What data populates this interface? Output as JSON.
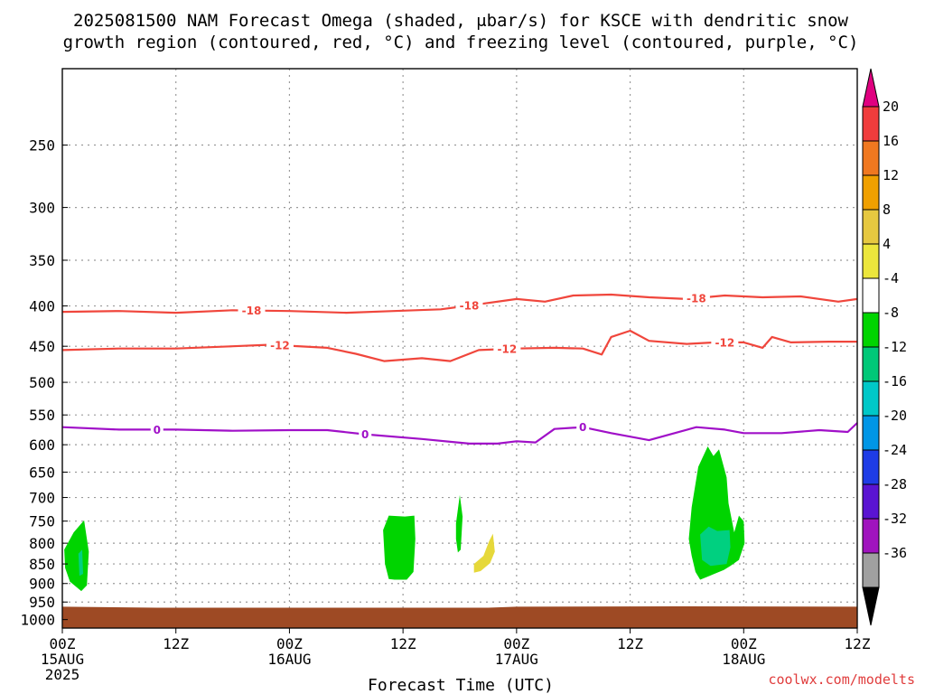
{
  "title_line1": "2025081500 NAM Forecast Omega (shaded, μbar/s) for KSCE with dendritic snow",
  "title_line2": "growth region (contoured, red, °C) and freezing level (contoured, purple, °C)",
  "xlabel": "Forecast Time (UTC)",
  "credit": "coolwx.com/modelts",
  "colors": {
    "dendritic": "#f0463c",
    "freezing": "#a010c8",
    "ground": "#9e4a24",
    "omega_weak_up": "#00d400",
    "omega_mod_up": "#00d080",
    "omega_down": "#e6d83a",
    "grid": "#9a9a9a"
  },
  "colorbar": {
    "labels": [
      "20",
      "16",
      "12",
      "8",
      "4",
      "-4",
      "-8",
      "-12",
      "-16",
      "-20",
      "-24",
      "-28",
      "-32",
      "-36"
    ],
    "colors": [
      "#f03c3c",
      "#f07820",
      "#f0a000",
      "#e6c840",
      "#ece63c",
      "#ffffff",
      "#00d400",
      "#00c878",
      "#00c8c8",
      "#0096e6",
      "#1e3ce6",
      "#5a14d2",
      "#a014be",
      "#a0a0a0"
    ],
    "top_arrow_color": "#e00080",
    "bottom_arrow_color": "#000000"
  },
  "chart_data": {
    "type": "time-height contour",
    "xlabel": "Forecast Time (UTC)",
    "x_ticks": [
      {
        "hour": 0,
        "line1": "00Z",
        "line2": "15AUG",
        "line3": "2025"
      },
      {
        "hour": 12,
        "line1": "12Z",
        "line2": "",
        "line3": ""
      },
      {
        "hour": 24,
        "line1": "00Z",
        "line2": "16AUG",
        "line3": ""
      },
      {
        "hour": 36,
        "line1": "12Z",
        "line2": "",
        "line3": ""
      },
      {
        "hour": 48,
        "line1": "00Z",
        "line2": "17AUG",
        "line3": ""
      },
      {
        "hour": 60,
        "line1": "12Z",
        "line2": "",
        "line3": ""
      },
      {
        "hour": 72,
        "line1": "00Z",
        "line2": "18AUG",
        "line3": ""
      },
      {
        "hour": 84,
        "line1": "12Z",
        "line2": "",
        "line3": ""
      }
    ],
    "xlim": [
      0,
      84
    ],
    "y_ticks": [
      250,
      300,
      350,
      400,
      450,
      500,
      550,
      600,
      650,
      700,
      750,
      800,
      850,
      900,
      950,
      1000
    ],
    "ylim_hPa": [
      200,
      1025
    ],
    "y_scale": "log (pressure)",
    "grid": true,
    "contours": [
      {
        "name": "-18",
        "color": "#f0463c",
        "labels": [
          {
            "hour": 20,
            "text": "-18"
          },
          {
            "hour": 43,
            "text": "-18"
          },
          {
            "hour": 67,
            "text": "-18"
          }
        ],
        "points": [
          [
            0,
            407
          ],
          [
            6,
            406
          ],
          [
            12,
            408
          ],
          [
            18,
            405
          ],
          [
            24,
            406
          ],
          [
            30,
            408
          ],
          [
            35,
            406
          ],
          [
            40,
            404
          ],
          [
            44,
            398
          ],
          [
            48,
            392
          ],
          [
            51,
            395
          ],
          [
            54,
            388
          ],
          [
            58,
            387
          ],
          [
            62,
            390
          ],
          [
            66,
            392
          ],
          [
            70,
            388
          ],
          [
            74,
            390
          ],
          [
            78,
            389
          ],
          [
            82,
            395
          ],
          [
            84,
            392
          ]
        ]
      },
      {
        "name": "-12",
        "color": "#f0463c",
        "labels": [
          {
            "hour": 23,
            "text": "-12"
          },
          {
            "hour": 47,
            "text": "-12"
          },
          {
            "hour": 70,
            "text": "-12"
          }
        ],
        "points": [
          [
            0,
            455
          ],
          [
            6,
            453
          ],
          [
            12,
            453
          ],
          [
            18,
            450
          ],
          [
            22,
            448
          ],
          [
            28,
            452
          ],
          [
            31,
            460
          ],
          [
            34,
            470
          ],
          [
            38,
            466
          ],
          [
            41,
            470
          ],
          [
            44,
            455
          ],
          [
            48,
            453
          ],
          [
            52,
            452
          ],
          [
            55,
            453
          ],
          [
            57,
            461
          ],
          [
            58,
            438
          ],
          [
            60,
            430
          ],
          [
            62,
            443
          ],
          [
            66,
            447
          ],
          [
            69,
            445
          ],
          [
            72,
            445
          ],
          [
            74,
            452
          ],
          [
            75,
            438
          ],
          [
            77,
            445
          ],
          [
            81,
            444
          ],
          [
            84,
            444
          ]
        ]
      },
      {
        "name": "0",
        "color": "#a010c8",
        "labels": [
          {
            "hour": 10,
            "text": "0"
          },
          {
            "hour": 32,
            "text": "0"
          },
          {
            "hour": 55,
            "text": "0"
          }
        ],
        "points": [
          [
            0,
            570
          ],
          [
            6,
            574
          ],
          [
            12,
            574
          ],
          [
            18,
            576
          ],
          [
            24,
            575
          ],
          [
            28,
            575
          ],
          [
            32,
            582
          ],
          [
            38,
            590
          ],
          [
            43,
            598
          ],
          [
            46,
            598
          ],
          [
            48,
            594
          ],
          [
            50,
            596
          ],
          [
            52,
            573
          ],
          [
            55,
            570
          ],
          [
            58,
            580
          ],
          [
            62,
            592
          ],
          [
            64,
            583
          ],
          [
            67,
            570
          ],
          [
            70,
            574
          ],
          [
            72,
            580
          ],
          [
            76,
            580
          ],
          [
            80,
            575
          ],
          [
            83,
            578
          ],
          [
            84,
            563
          ]
        ]
      }
    ],
    "shaded_regions": [
      {
        "name": "omega -4 to -8 (weak ascent)",
        "color": "#00d400",
        "value_range": [
          -8,
          -4
        ],
        "points": [
          [
            0.2,
            815
          ],
          [
            1.2,
            775
          ],
          [
            2.3,
            748
          ],
          [
            2.8,
            820
          ],
          [
            2.6,
            905
          ],
          [
            2.0,
            920
          ],
          [
            0.8,
            895
          ],
          [
            0.3,
            860
          ]
        ]
      },
      {
        "name": "omega -8 to -12",
        "color": "#00d080",
        "value_range": [
          -12,
          -8
        ],
        "points": [
          [
            1.7,
            825
          ],
          [
            2.1,
            815
          ],
          [
            2.2,
            875
          ],
          [
            1.8,
            880
          ]
        ]
      },
      {
        "name": "omega -4 to -8",
        "color": "#00d400",
        "value_range": [
          -8,
          -4
        ],
        "points": [
          [
            33.9,
            770
          ],
          [
            34.5,
            738
          ],
          [
            36.2,
            740
          ],
          [
            37.2,
            738
          ],
          [
            37.3,
            790
          ],
          [
            37.1,
            870
          ],
          [
            36.4,
            890
          ],
          [
            35.1,
            890
          ],
          [
            34.5,
            888
          ],
          [
            34.1,
            850
          ]
        ]
      },
      {
        "name": "omega -4 to -8",
        "color": "#00d400",
        "value_range": [
          -8,
          -4
        ],
        "points": [
          [
            41.6,
            755
          ],
          [
            42.0,
            695
          ],
          [
            42.3,
            740
          ],
          [
            42.1,
            815
          ],
          [
            41.8,
            822
          ],
          [
            41.6,
            790
          ]
        ]
      },
      {
        "name": "omega 4 to 8 (descent)",
        "color": "#e6d83a",
        "value_range": [
          4,
          8
        ],
        "points": [
          [
            43.5,
            850
          ],
          [
            44.5,
            830
          ],
          [
            45.1,
            795
          ],
          [
            45.5,
            778
          ],
          [
            45.7,
            820
          ],
          [
            45.2,
            848
          ],
          [
            44.2,
            868
          ],
          [
            43.5,
            872
          ]
        ]
      },
      {
        "name": "omega -4 to -8",
        "color": "#00d400",
        "value_range": [
          -8,
          -4
        ],
        "points": [
          [
            66.2,
            790
          ],
          [
            66.5,
            720
          ],
          [
            67.2,
            640
          ],
          [
            68.2,
            603
          ],
          [
            68.8,
            620
          ],
          [
            69.4,
            608
          ],
          [
            70.2,
            660
          ],
          [
            70.4,
            712
          ],
          [
            71.0,
            775
          ],
          [
            71.5,
            738
          ],
          [
            72.0,
            750
          ],
          [
            72.1,
            800
          ],
          [
            71.5,
            840
          ],
          [
            70.6,
            855
          ],
          [
            69.9,
            865
          ],
          [
            68.4,
            880
          ],
          [
            67.4,
            890
          ],
          [
            66.9,
            870
          ],
          [
            66.5,
            830
          ]
        ]
      },
      {
        "name": "omega -8 to -12",
        "color": "#00d080",
        "value_range": [
          -12,
          -8
        ],
        "points": [
          [
            67.4,
            780
          ],
          [
            68.3,
            762
          ],
          [
            69.2,
            772
          ],
          [
            70.5,
            770
          ],
          [
            70.6,
            810
          ],
          [
            70.2,
            850
          ],
          [
            68.5,
            855
          ],
          [
            67.6,
            840
          ]
        ]
      }
    ],
    "ground": {
      "color": "#9e4a24",
      "top_hPa": [
        [
          0,
          963
        ],
        [
          10,
          966
        ],
        [
          45,
          966
        ],
        [
          48,
          963
        ],
        [
          65,
          962
        ],
        [
          84,
          963
        ]
      ]
    }
  }
}
